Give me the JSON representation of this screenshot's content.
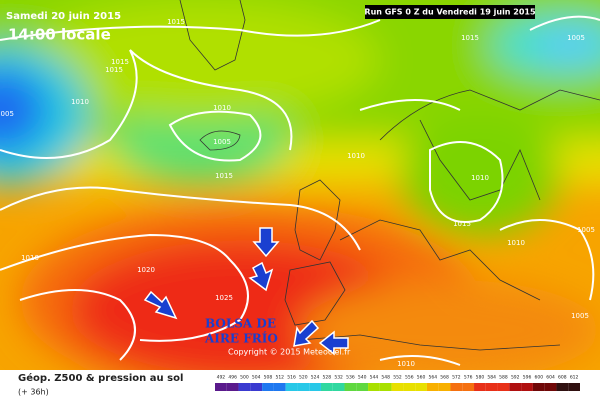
{
  "header": {
    "date": "Samedi 20 juin 2015",
    "time": "14:00 locale",
    "run": "Run GFS 0 Z du Vendredi 19 juin 2015"
  },
  "isobar_labels": [
    1015,
    1015,
    1010,
    1010,
    1005,
    1015,
    1010,
    1005,
    1015,
    1010,
    1015,
    1010,
    1005,
    1020,
    1025,
    1010,
    1010,
    1005,
    1015,
    1005
  ],
  "annotation": {
    "line1": "BOLSA DE",
    "line2": "AIRE FRÍO"
  },
  "copyright": "Copyright © 2015 Meteociel.fr",
  "footer": {
    "title": "Géop. Z500 & pression au sol",
    "lead": "(+ 36h)"
  },
  "legend": {
    "labels": [
      492,
      496,
      500,
      504,
      508,
      512,
      516,
      520,
      524,
      528,
      532,
      536,
      540,
      544,
      548,
      552,
      556,
      560,
      564,
      568,
      572,
      576,
      580,
      584,
      588,
      592,
      596,
      600,
      604,
      608,
      612
    ]
  }
}
